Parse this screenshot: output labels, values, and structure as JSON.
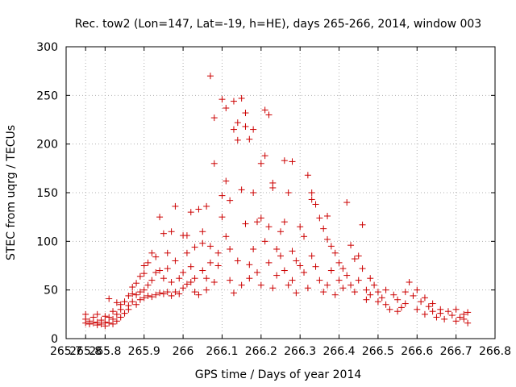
{
  "chart_data": {
    "type": "scatter",
    "title": "Rec. tow2 (Lon=147, Lat=-19, h=HE), days 265-266, 2014, window 003",
    "xlabel": "GPS time / Days of year 2014",
    "ylabel": "STEC from uqrg / TECUs",
    "xlim": [
      265.7,
      266.8
    ],
    "ylim": [
      0,
      300
    ],
    "xticks": [
      "265.7",
      "265.8",
      "265.8",
      "265.9",
      "266",
      "266.1",
      "266.2",
      "266.3",
      "266.4",
      "266.5",
      "266.6",
      "266.7",
      "266.8"
    ],
    "xtick_values": [
      265.7,
      265.75,
      265.8,
      265.9,
      266.0,
      266.1,
      266.2,
      266.3,
      266.4,
      266.5,
      266.6,
      266.7,
      266.8
    ],
    "yticks": [
      "0",
      "50",
      "100",
      "150",
      "200",
      "250",
      "300"
    ],
    "ytick_values": [
      0,
      50,
      100,
      150,
      200,
      250,
      300
    ],
    "grid": true,
    "marker": "+",
    "color": "#cc0000",
    "series": [
      {
        "points": [
          [
            265.75,
            16
          ],
          [
            265.75,
            20
          ],
          [
            265.75,
            25
          ],
          [
            265.76,
            15
          ],
          [
            265.76,
            18
          ],
          [
            265.77,
            16
          ],
          [
            265.77,
            22
          ],
          [
            265.78,
            17
          ],
          [
            265.78,
            14
          ],
          [
            265.78,
            25
          ],
          [
            265.79,
            15
          ],
          [
            265.79,
            19
          ],
          [
            265.8,
            13
          ],
          [
            265.8,
            17
          ],
          [
            265.8,
            23
          ],
          [
            265.81,
            16
          ],
          [
            265.81,
            22
          ],
          [
            265.81,
            41
          ],
          [
            265.82,
            20
          ],
          [
            265.82,
            15
          ],
          [
            265.82,
            28
          ],
          [
            265.83,
            18
          ],
          [
            265.83,
            37
          ],
          [
            265.83,
            25
          ],
          [
            265.84,
            22
          ],
          [
            265.84,
            30
          ],
          [
            265.84,
            35
          ],
          [
            265.85,
            26
          ],
          [
            265.85,
            38
          ],
          [
            265.86,
            30
          ],
          [
            265.86,
            44
          ],
          [
            265.86,
            34
          ],
          [
            265.87,
            38
          ],
          [
            265.87,
            46
          ],
          [
            265.87,
            53
          ],
          [
            265.88,
            35
          ],
          [
            265.88,
            45
          ],
          [
            265.88,
            57
          ],
          [
            265.89,
            40
          ],
          [
            265.89,
            48
          ],
          [
            265.89,
            64
          ],
          [
            265.9,
            42
          ],
          [
            265.9,
            50
          ],
          [
            265.9,
            67
          ],
          [
            265.9,
            75
          ],
          [
            265.91,
            44
          ],
          [
            265.91,
            55
          ],
          [
            265.91,
            78
          ],
          [
            265.92,
            43
          ],
          [
            265.92,
            60
          ],
          [
            265.92,
            88
          ],
          [
            265.93,
            45
          ],
          [
            265.93,
            68
          ],
          [
            265.93,
            84
          ],
          [
            265.94,
            125
          ],
          [
            265.94,
            47
          ],
          [
            265.94,
            70
          ],
          [
            265.95,
            108
          ],
          [
            265.95,
            46
          ],
          [
            265.95,
            62
          ],
          [
            265.96,
            88
          ],
          [
            265.96,
            48
          ],
          [
            265.96,
            72
          ],
          [
            265.97,
            110
          ],
          [
            265.97,
            44
          ],
          [
            265.97,
            58
          ],
          [
            265.98,
            136
          ],
          [
            265.98,
            48
          ],
          [
            265.98,
            80
          ],
          [
            265.99,
            62
          ],
          [
            265.99,
            46
          ],
          [
            266.0,
            106
          ],
          [
            266.0,
            52
          ],
          [
            266.0,
            68
          ],
          [
            266.01,
            88
          ],
          [
            266.01,
            56
          ],
          [
            266.01,
            106
          ],
          [
            266.02,
            130
          ],
          [
            266.02,
            58
          ],
          [
            266.02,
            74
          ],
          [
            266.03,
            94
          ],
          [
            266.03,
            48
          ],
          [
            266.03,
            62
          ],
          [
            266.04,
            133
          ],
          [
            266.04,
            45
          ],
          [
            266.05,
            70
          ],
          [
            266.05,
            98
          ],
          [
            266.05,
            110
          ],
          [
            266.06,
            136
          ],
          [
            266.06,
            62
          ],
          [
            266.06,
            50
          ],
          [
            266.07,
            78
          ],
          [
            266.07,
            270
          ],
          [
            266.07,
            95
          ],
          [
            266.08,
            227
          ],
          [
            266.08,
            180
          ],
          [
            266.08,
            58
          ],
          [
            266.09,
            75
          ],
          [
            266.09,
            88
          ],
          [
            266.1,
            125
          ],
          [
            266.1,
            147
          ],
          [
            266.1,
            246
          ],
          [
            266.11,
            237
          ],
          [
            266.11,
            162
          ],
          [
            266.11,
            105
          ],
          [
            266.12,
            92
          ],
          [
            266.12,
            60
          ],
          [
            266.12,
            142
          ],
          [
            266.13,
            215
          ],
          [
            266.13,
            244
          ],
          [
            266.13,
            47
          ],
          [
            266.14,
            204
          ],
          [
            266.14,
            222
          ],
          [
            266.14,
            80
          ],
          [
            266.15,
            247
          ],
          [
            266.15,
            153
          ],
          [
            266.15,
            55
          ],
          [
            266.16,
            232
          ],
          [
            266.16,
            218
          ],
          [
            266.16,
            118
          ],
          [
            266.17,
            205
          ],
          [
            266.17,
            76
          ],
          [
            266.17,
            62
          ],
          [
            266.18,
            215
          ],
          [
            266.18,
            150
          ],
          [
            266.18,
            92
          ],
          [
            266.19,
            120
          ],
          [
            266.19,
            68
          ],
          [
            266.2,
            124
          ],
          [
            266.2,
            180
          ],
          [
            266.2,
            55
          ],
          [
            266.21,
            188
          ],
          [
            266.21,
            100
          ],
          [
            266.21,
            235
          ],
          [
            266.22,
            230
          ],
          [
            266.22,
            78
          ],
          [
            266.22,
            115
          ],
          [
            266.23,
            160
          ],
          [
            266.23,
            155
          ],
          [
            266.23,
            52
          ],
          [
            266.24,
            92
          ],
          [
            266.24,
            65
          ],
          [
            266.25,
            85
          ],
          [
            266.25,
            110
          ],
          [
            266.26,
            120
          ],
          [
            266.26,
            183
          ],
          [
            266.26,
            70
          ],
          [
            266.27,
            150
          ],
          [
            266.27,
            55
          ],
          [
            266.28,
            182
          ],
          [
            266.28,
            90
          ],
          [
            266.28,
            60
          ],
          [
            266.29,
            80
          ],
          [
            266.29,
            47
          ],
          [
            266.3,
            115
          ],
          [
            266.3,
            75
          ],
          [
            266.31,
            105
          ],
          [
            266.31,
            68
          ],
          [
            266.32,
            168
          ],
          [
            266.32,
            52
          ],
          [
            266.33,
            150
          ],
          [
            266.33,
            143
          ],
          [
            266.33,
            85
          ],
          [
            266.34,
            138
          ],
          [
            266.34,
            74
          ],
          [
            266.35,
            124
          ],
          [
            266.35,
            60
          ],
          [
            266.36,
            113
          ],
          [
            266.36,
            48
          ],
          [
            266.37,
            126
          ],
          [
            266.37,
            102
          ],
          [
            266.37,
            55
          ],
          [
            266.38,
            70
          ],
          [
            266.38,
            95
          ],
          [
            266.39,
            88
          ],
          [
            266.39,
            45
          ],
          [
            266.4,
            78
          ],
          [
            266.4,
            60
          ],
          [
            266.41,
            72
          ],
          [
            266.41,
            52
          ],
          [
            266.42,
            65
          ],
          [
            266.42,
            140
          ],
          [
            266.43,
            96
          ],
          [
            266.43,
            55
          ],
          [
            266.44,
            82
          ],
          [
            266.44,
            48
          ],
          [
            266.45,
            85
          ],
          [
            266.45,
            60
          ],
          [
            266.46,
            72
          ],
          [
            266.46,
            117
          ],
          [
            266.47,
            50
          ],
          [
            266.47,
            40
          ],
          [
            266.48,
            62
          ],
          [
            266.48,
            45
          ],
          [
            266.49,
            55
          ],
          [
            266.5,
            38
          ],
          [
            266.5,
            48
          ],
          [
            266.51,
            42
          ],
          [
            266.52,
            35
          ],
          [
            266.52,
            50
          ],
          [
            266.53,
            30
          ],
          [
            266.54,
            45
          ],
          [
            266.55,
            28
          ],
          [
            266.55,
            40
          ],
          [
            266.56,
            32
          ],
          [
            266.57,
            48
          ],
          [
            266.57,
            36
          ],
          [
            266.58,
            58
          ],
          [
            266.59,
            44
          ],
          [
            266.6,
            30
          ],
          [
            266.6,
            50
          ],
          [
            266.61,
            38
          ],
          [
            266.62,
            25
          ],
          [
            266.62,
            42
          ],
          [
            266.63,
            33
          ],
          [
            266.64,
            28
          ],
          [
            266.64,
            36
          ],
          [
            266.65,
            22
          ],
          [
            266.66,
            30
          ],
          [
            266.66,
            26
          ],
          [
            266.67,
            20
          ],
          [
            266.68,
            28
          ],
          [
            266.69,
            24
          ],
          [
            266.7,
            18
          ],
          [
            266.7,
            30
          ],
          [
            266.71,
            22
          ],
          [
            266.72,
            20
          ],
          [
            266.72,
            25
          ],
          [
            266.73,
            16
          ],
          [
            266.73,
            27
          ]
        ]
      }
    ]
  }
}
